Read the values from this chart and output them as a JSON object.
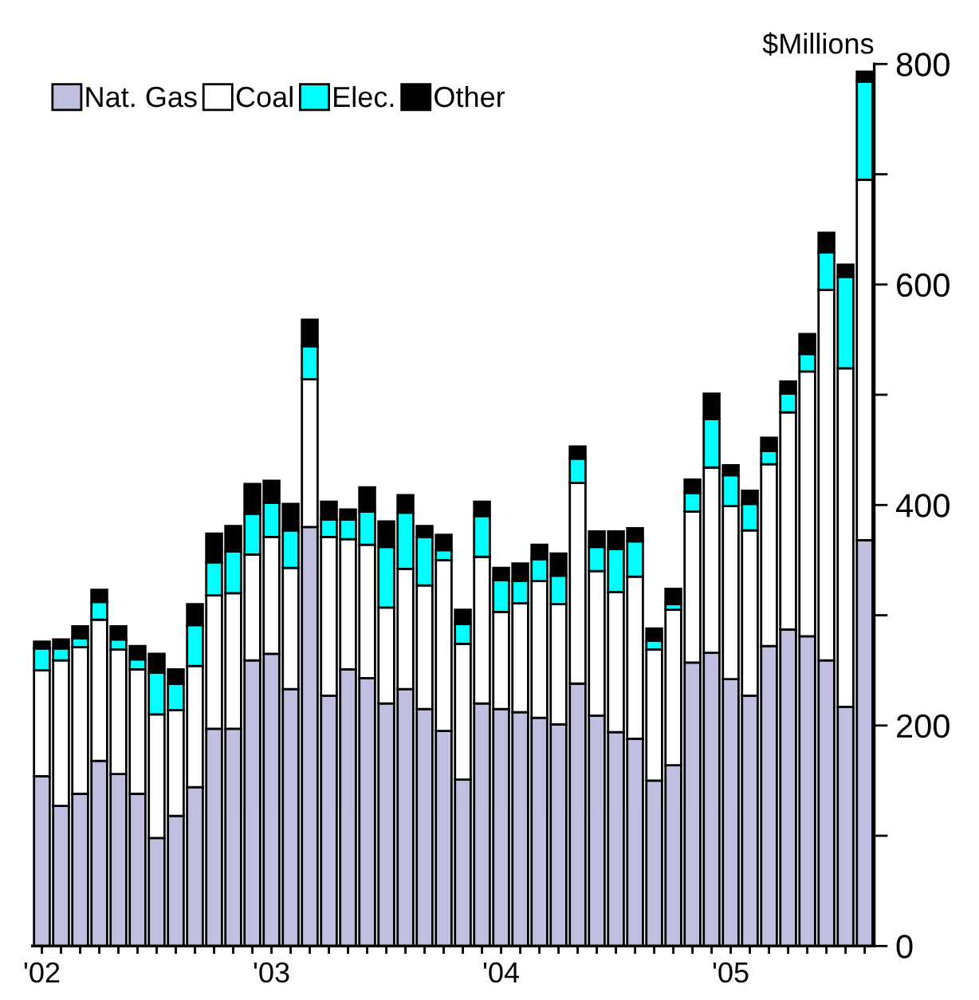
{
  "chart_data": {
    "type": "bar",
    "stacked": true,
    "ylabel": "$Millions",
    "categories": [
      "'02",
      null,
      null,
      null,
      null,
      null,
      null,
      null,
      null,
      null,
      null,
      null,
      "'03",
      null,
      null,
      null,
      null,
      null,
      null,
      null,
      null,
      null,
      null,
      null,
      "'04",
      null,
      null,
      null,
      null,
      null,
      null,
      null,
      null,
      null,
      null,
      null,
      "'05",
      null,
      null,
      null,
      null,
      null,
      null,
      null
    ],
    "series": [
      {
        "name": "Nat. Gas",
        "color": "#bfbfdf",
        "values": [
          154,
          127,
          138,
          168,
          156,
          138,
          98,
          118,
          144,
          197,
          197,
          259,
          265,
          233,
          380,
          227,
          251,
          243,
          220,
          233,
          215,
          195,
          151,
          220,
          215,
          212,
          207,
          201,
          238,
          209,
          194,
          188,
          150,
          164,
          257,
          266,
          242,
          227,
          272,
          287,
          281,
          259,
          217,
          368
        ]
      },
      {
        "name": "Coal",
        "color": "#ffffff",
        "values": [
          96,
          132,
          133,
          128,
          113,
          113,
          112,
          96,
          110,
          121,
          123,
          96,
          106,
          110,
          134,
          144,
          118,
          121,
          87,
          109,
          112,
          155,
          123,
          133,
          88,
          99,
          124,
          109,
          182,
          131,
          127,
          147,
          119,
          141,
          137,
          168,
          157,
          150,
          165,
          197,
          240,
          336,
          307,
          327
        ]
      },
      {
        "name": "Elec.",
        "color": "#00ffff",
        "values": [
          20,
          11,
          8,
          16,
          9,
          9,
          38,
          24,
          37,
          30,
          38,
          37,
          31,
          34,
          30,
          16,
          18,
          30,
          55,
          51,
          44,
          9,
          18,
          37,
          29,
          20,
          20,
          26,
          22,
          22,
          39,
          32,
          8,
          5,
          17,
          44,
          28,
          24,
          12,
          17,
          16,
          34,
          83,
          89
        ]
      },
      {
        "name": "Other",
        "color": "#000000",
        "values": [
          6,
          8,
          11,
          11,
          12,
          12,
          17,
          13,
          19,
          26,
          23,
          27,
          20,
          24,
          24,
          16,
          9,
          22,
          23,
          16,
          10,
          14,
          13,
          13,
          11,
          16,
          13,
          20,
          11,
          14,
          16,
          12,
          11,
          14,
          12,
          23,
          9,
          12,
          12,
          11,
          18,
          18,
          11,
          9
        ]
      }
    ],
    "ylim": [
      0,
      800
    ],
    "yticks": [
      0,
      {
        "value": 100,
        "label": null
      },
      200,
      {
        "value": 300,
        "label": null
      },
      400,
      {
        "value": 500,
        "label": null
      },
      600,
      {
        "value": 700,
        "label": null
      },
      800
    ],
    "grid": false,
    "legend": "top left"
  }
}
